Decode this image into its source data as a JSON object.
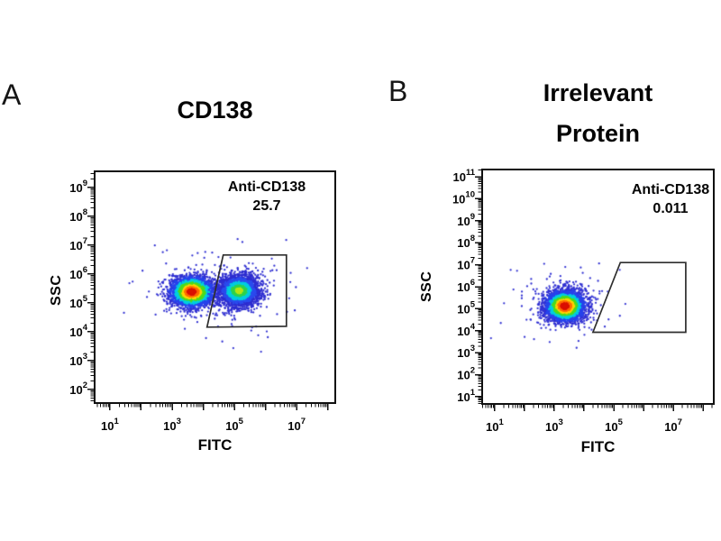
{
  "figure_type": "flow-cytometry-dot-plots",
  "panels": [
    {
      "letter": "A",
      "title_lines": {
        "0": "CD138"
      },
      "annotation": {
        "label": "Anti-CD138",
        "value": "25.7"
      },
      "xlabel": "FITC",
      "ylabel": "SSC"
    },
    {
      "letter": "B",
      "title_lines": {
        "0": "Irrelevant",
        "1": "Protein"
      },
      "annotation": {
        "label": "Anti-CD138",
        "value": "0.011"
      },
      "xlabel": "FITC",
      "ylabel": "SSC"
    }
  ],
  "chart_data": [
    {
      "type": "scatter",
      "subtype": "flow-cytometry-density",
      "panel": "A",
      "title": "CD138",
      "xlabel": "FITC",
      "ylabel": "SSC",
      "x_scale": "log10",
      "y_scale": "log10",
      "x_range_exp": [
        0.51,
        8.24
      ],
      "y_range_exp": [
        1.53,
        9.56
      ],
      "x_ticks_exp": [
        1,
        3,
        5,
        7
      ],
      "y_ticks_exp": [
        2,
        3,
        4,
        5,
        6,
        7,
        8,
        9
      ],
      "grid": false,
      "gate": {
        "label": "Anti-CD138",
        "percent_in_gate": 25.7,
        "polygon_exp": [
          [
            4.64,
            6.66
          ],
          [
            6.67,
            6.66
          ],
          [
            6.67,
            4.19
          ],
          [
            4.12,
            4.16
          ]
        ]
      },
      "clusters": [
        {
          "name": "unstained-population",
          "cx_exp": 3.63,
          "cy_exp": 5.38,
          "sx_exp": 0.34,
          "sy_exp": 0.26,
          "n": 3000,
          "core": "red"
        },
        {
          "name": "cd138-positive-population",
          "cx_exp": 5.15,
          "cy_exp": 5.42,
          "sx_exp": 0.33,
          "sy_exp": 0.27,
          "n": 2600,
          "core": "green"
        }
      ]
    },
    {
      "type": "scatter",
      "subtype": "flow-cytometry-density",
      "panel": "B",
      "title": "Irrelevant Protein",
      "xlabel": "FITC",
      "ylabel": "SSC",
      "x_scale": "log10",
      "y_scale": "log10",
      "x_range_exp": [
        0.58,
        8.36
      ],
      "y_range_exp": [
        0.67,
        11.33
      ],
      "x_ticks_exp": [
        1,
        3,
        5,
        7
      ],
      "y_ticks_exp": [
        1,
        2,
        3,
        4,
        5,
        6,
        7,
        8,
        9,
        10,
        11
      ],
      "grid": false,
      "gate": {
        "label": "Anti-CD138",
        "percent_in_gate": 0.011,
        "polygon_exp": [
          [
            5.22,
            7.1
          ],
          [
            7.42,
            7.1
          ],
          [
            7.42,
            3.93
          ],
          [
            4.3,
            3.93
          ]
        ]
      },
      "clusters": [
        {
          "name": "negative-population",
          "cx_exp": 3.36,
          "cy_exp": 5.12,
          "sx_exp": 0.33,
          "sy_exp": 0.35,
          "n": 3200,
          "core": "red"
        }
      ]
    }
  ],
  "colors": {
    "background": "#ffffff",
    "frame": "#101010",
    "gate": "#2e2e2e",
    "text": "#050505",
    "levels_red": [
      0.38,
      0.62,
      0.85,
      1.15,
      1.5,
      2.0
    ],
    "ramp_red": [
      "#db1200",
      "#ff6d00",
      "#ffd300",
      "#4cdc1e",
      "#00cfe0",
      "#2743ec",
      "#3131d2"
    ],
    "levels_green": [
      0.32,
      0.68,
      1.08,
      1.55
    ],
    "ramp_green": [
      "#b8e517",
      "#2fd34f",
      "#00cde0",
      "#2b4cee",
      "#2d2dd0"
    ]
  }
}
